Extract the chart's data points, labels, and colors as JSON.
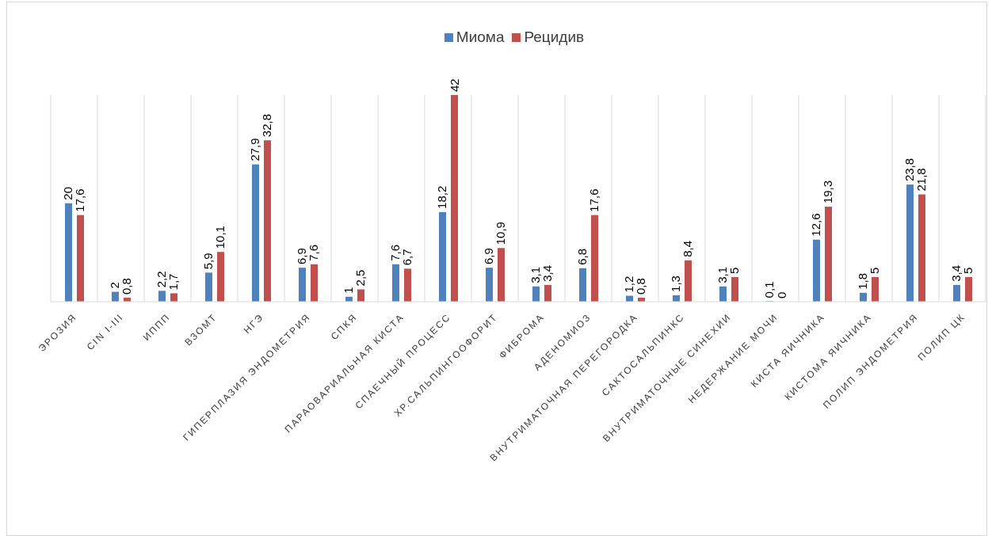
{
  "chart_data": {
    "type": "bar",
    "categories": [
      "ЭРОЗИЯ",
      "CIN I-III",
      "ИППП",
      "ВЗОМТ",
      "НГЭ",
      "ГИПЕРПЛАЗИЯ ЭНДОМЕТРИЯ",
      "СПКЯ",
      "ПАРАОВАРИАЛЬНАЯ КИСТА",
      "СПАЕЧНЫЙ ПРОЦЕСС",
      "ХР.САЛЬПИНГООФОРИТ",
      "ФИБРОМА",
      "АДЕНОМИОЗ",
      "ВНУТРИМАТОЧНАЯ ПЕРЕГОРОДКА",
      "САКТОСАЛЬПИНКС",
      "ВНУТРИМАТОЧНЫЕ СИНЕХИИ",
      "НЕДЕРЖАНИЕ МОЧИ",
      "КИСТА ЯИЧНИКА",
      "КИСТОМА ЯИЧНИКА",
      "ПОЛИП ЭНДОМЕТРИЯ",
      "ПОЛИП ЦК"
    ],
    "series": [
      {
        "name": "Миома",
        "color": "#4f81bd",
        "values": [
          20,
          2,
          2.2,
          5.9,
          27.9,
          6.9,
          1,
          7.6,
          18.2,
          6.9,
          3.1,
          6.8,
          1.2,
          1.3,
          3.1,
          0.1,
          12.6,
          1.8,
          23.8,
          3.4
        ],
        "value_labels": [
          "20",
          "2",
          "2,2",
          "5,9",
          "27,9",
          "6,9",
          "1",
          "7,6",
          "18,2",
          "6,9",
          "3,1",
          "6,8",
          "1,2",
          "1,3",
          "3,1",
          "0,1",
          "12,6",
          "1,8",
          "23,8",
          "3,4"
        ]
      },
      {
        "name": "Рецидив",
        "color": "#c0504d",
        "values": [
          17.6,
          0.8,
          1.7,
          10.1,
          32.8,
          7.6,
          2.5,
          6.7,
          42,
          10.9,
          3.4,
          17.6,
          0.8,
          8.4,
          5,
          0,
          19.3,
          5,
          21.8,
          5
        ],
        "value_labels": [
          "17,6",
          "0,8",
          "1,7",
          "10,1",
          "32,8",
          "7,6",
          "2,5",
          "6,7",
          "42",
          "10,9",
          "3,4",
          "17,6",
          "0,8",
          "8,4",
          "5",
          "0",
          "19,3",
          "5",
          "21,8",
          "5"
        ]
      }
    ],
    "grid": "x",
    "legend": "top"
  }
}
